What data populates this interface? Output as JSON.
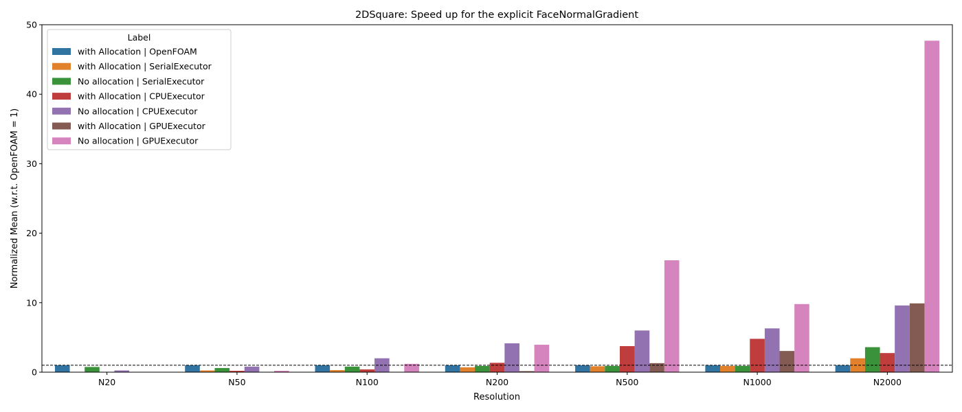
{
  "chart_data": {
    "type": "bar",
    "title": "2DSquare: Speed up for the explicit FaceNormalGradient",
    "xlabel": "Resolution",
    "ylabel": "Normalized Mean (w.r.t. OpenFOAM = 1)",
    "ylim": [
      0,
      50
    ],
    "yticks": [
      0,
      10,
      20,
      30,
      40,
      50
    ],
    "grid": false,
    "reference_line": 1,
    "legend": {
      "title": "Label",
      "position": "top-left"
    },
    "categories": [
      "N20",
      "N50",
      "N100",
      "N200",
      "N500",
      "N1000",
      "N2000"
    ],
    "series": [
      {
        "name": "with Allocation | OpenFOAM",
        "color": "#3274a1",
        "values": [
          1,
          1,
          1,
          1,
          1,
          1,
          1
        ]
      },
      {
        "name": "with Allocation | SerialExecutor",
        "color": "#e1812c",
        "values": [
          0.05,
          0.25,
          0.3,
          0.7,
          0.85,
          0.9,
          2.0
        ]
      },
      {
        "name": "No allocation | SerialExecutor",
        "color": "#3a923a",
        "values": [
          0.75,
          0.6,
          0.8,
          0.9,
          0.9,
          0.9,
          3.6
        ]
      },
      {
        "name": "with Allocation | CPUExecutor",
        "color": "#c03d3e",
        "values": [
          0.05,
          0.2,
          0.4,
          1.35,
          3.75,
          4.8,
          2.75
        ]
      },
      {
        "name": "No allocation | CPUExecutor",
        "color": "#9372b2",
        "values": [
          0.25,
          0.8,
          2.0,
          4.15,
          6.0,
          6.3,
          9.6
        ]
      },
      {
        "name": "with Allocation | GPUExecutor",
        "color": "#845b53",
        "values": [
          0.02,
          0.02,
          0.05,
          0.15,
          1.3,
          3.05,
          9.9
        ]
      },
      {
        "name": "No allocation | GPUExecutor",
        "color": "#d684bd",
        "values": [
          0.05,
          0.2,
          1.2,
          3.95,
          16.1,
          9.8,
          47.7
        ]
      }
    ]
  }
}
